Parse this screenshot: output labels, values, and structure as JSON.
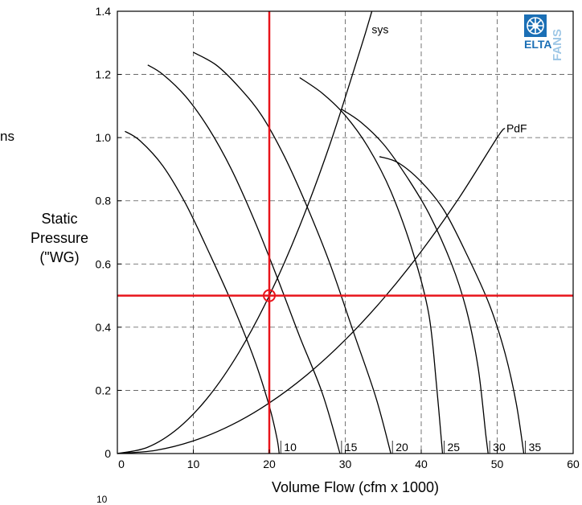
{
  "page_fragments": {
    "left_edge": "ns",
    "bottom_edge": "10"
  },
  "logo": {
    "text_elta": "ELTA",
    "text_fans": "FANS"
  },
  "chart_data": {
    "type": "line",
    "title": "",
    "xlabel": "Volume Flow (cfm x 1000)",
    "ylabel_lines": [
      "Static",
      "Pressure",
      "(\"WG)"
    ],
    "xlim": [
      0,
      60
    ],
    "ylim": [
      0,
      1.4
    ],
    "xticks": [
      "0",
      "10",
      "20",
      "30",
      "40",
      "50",
      "60"
    ],
    "yticks": [
      "0",
      "0.2",
      "0.4",
      "0.6",
      "0.8",
      "1.0",
      "1.2",
      "1.4"
    ],
    "grid": true,
    "fan_curves": [
      {
        "label": "10",
        "points": [
          [
            1,
            1.02
          ],
          [
            3,
            0.99
          ],
          [
            6,
            0.91
          ],
          [
            9,
            0.79
          ],
          [
            12,
            0.64
          ],
          [
            15,
            0.48
          ],
          [
            18,
            0.3
          ],
          [
            20,
            0.15
          ],
          [
            21,
            0.05
          ],
          [
            21.3,
            0
          ]
        ]
      },
      {
        "label": "15",
        "points": [
          [
            4,
            1.23
          ],
          [
            6,
            1.2
          ],
          [
            9,
            1.13
          ],
          [
            12,
            1.03
          ],
          [
            15,
            0.9
          ],
          [
            18,
            0.74
          ],
          [
            21,
            0.56
          ],
          [
            24,
            0.37
          ],
          [
            27,
            0.19
          ],
          [
            29.3,
            0
          ]
        ]
      },
      {
        "label": "20",
        "points": [
          [
            10,
            1.27
          ],
          [
            13,
            1.23
          ],
          [
            16,
            1.16
          ],
          [
            19,
            1.07
          ],
          [
            22,
            0.94
          ],
          [
            25,
            0.78
          ],
          [
            28,
            0.6
          ],
          [
            31,
            0.39
          ],
          [
            34,
            0.18
          ],
          [
            36,
            0
          ]
        ]
      },
      {
        "label": "25",
        "points": [
          [
            24,
            1.19
          ],
          [
            27,
            1.14
          ],
          [
            30,
            1.07
          ],
          [
            33,
            0.97
          ],
          [
            36,
            0.83
          ],
          [
            39,
            0.63
          ],
          [
            41,
            0.44
          ],
          [
            42,
            0.22
          ],
          [
            42.8,
            0
          ]
        ]
      },
      {
        "label": "30",
        "points": [
          [
            29.5,
            1.09
          ],
          [
            32,
            1.05
          ],
          [
            35,
            0.98
          ],
          [
            38,
            0.88
          ],
          [
            41,
            0.76
          ],
          [
            44,
            0.6
          ],
          [
            46,
            0.45
          ],
          [
            47.5,
            0.27
          ],
          [
            48.5,
            0.06
          ],
          [
            48.8,
            0
          ]
        ]
      },
      {
        "label": "35",
        "points": [
          [
            34.5,
            0.94
          ],
          [
            37,
            0.92
          ],
          [
            40,
            0.86
          ],
          [
            43,
            0.77
          ],
          [
            46,
            0.63
          ],
          [
            49,
            0.47
          ],
          [
            51,
            0.32
          ],
          [
            52.5,
            0.16
          ],
          [
            53.5,
            0
          ]
        ]
      }
    ],
    "system_curve": {
      "label": "sys",
      "points": [
        [
          0,
          0
        ],
        [
          4,
          0.02
        ],
        [
          8,
          0.08
        ],
        [
          12,
          0.18
        ],
        [
          16,
          0.32
        ],
        [
          20,
          0.5
        ],
        [
          24,
          0.72
        ],
        [
          28,
          0.98
        ],
        [
          32,
          1.28
        ],
        [
          33.5,
          1.4
        ]
      ]
    },
    "pdf_curve": {
      "label": "PdF",
      "points": [
        [
          0,
          0
        ],
        [
          5,
          0.01
        ],
        [
          10,
          0.04
        ],
        [
          15,
          0.09
        ],
        [
          20,
          0.16
        ],
        [
          25,
          0.25
        ],
        [
          30,
          0.36
        ],
        [
          35,
          0.49
        ],
        [
          40,
          0.64
        ],
        [
          45,
          0.81
        ],
        [
          50,
          1.0
        ],
        [
          51,
          1.03
        ]
      ]
    },
    "operating_point": {
      "x": 20,
      "y": 0.5
    },
    "reference_lines": {
      "vertical_x": 20,
      "horizontal_y": 0.5
    },
    "colors": {
      "reference": "#e8141b",
      "curve": "#000000",
      "grid": "#555555",
      "logo_blue": "#1b6fb5",
      "logo_light": "#9ec7e6"
    }
  }
}
